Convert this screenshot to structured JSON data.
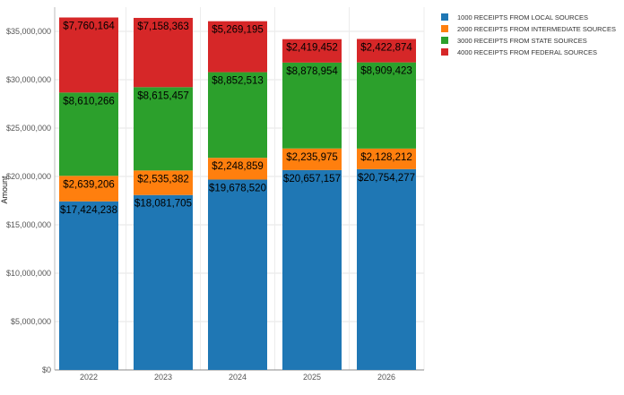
{
  "chart_data": {
    "type": "bar",
    "stacked": true,
    "categories": [
      "2022",
      "2023",
      "2024",
      "2025",
      "2026"
    ],
    "series": [
      {
        "name": "1000 RECEIPTS FROM LOCAL SOURCES",
        "color": "#1f77b4",
        "values": [
          17424238,
          18081705,
          19678520,
          20657157,
          20754277
        ],
        "labels": [
          "$17,424,238",
          "$18,081,705",
          "$19,678,520",
          "$20,657,157",
          "$20,754,277"
        ]
      },
      {
        "name": "2000 RECEIPTS FROM INTERMEDIATE SOURCES",
        "color": "#ff7f0e",
        "values": [
          2639206,
          2535382,
          2248859,
          2235975,
          2128212
        ],
        "labels": [
          "$2,639,206",
          "$2,535,382",
          "$2,248,859",
          "$2,235,975",
          "$2,128,212"
        ]
      },
      {
        "name": "3000 RECEIPTS FROM STATE SOURCES",
        "color": "#2ca02c",
        "values": [
          8610266,
          8615457,
          8852513,
          8878954,
          8909423
        ],
        "labels": [
          "$8,610,266",
          "$8,615,457",
          "$8,852,513",
          "$8,878,954",
          "$8,909,423"
        ]
      },
      {
        "name": "4000 RECEIPTS FROM FEDERAL SOURCES",
        "color": "#d62728",
        "values": [
          7760164,
          7158363,
          5269195,
          2419452,
          2422874
        ],
        "labels": [
          "$7,760,164",
          "$7,158,363",
          "$5,269,195",
          "$2,419,452",
          "$2,422,874"
        ]
      }
    ],
    "ylabel": "Amount",
    "xlabel": "",
    "ylim": [
      0,
      37500000
    ],
    "yticks": [
      0,
      5000000,
      10000000,
      15000000,
      20000000,
      25000000,
      30000000,
      35000000
    ],
    "ytick_labels": [
      "$0",
      "$5,000,000",
      "$10,000,000",
      "$15,000,000",
      "$20,000,000",
      "$25,000,000",
      "$30,000,000",
      "$35,000,000"
    ],
    "grid": true,
    "legend_position": "top-right"
  }
}
